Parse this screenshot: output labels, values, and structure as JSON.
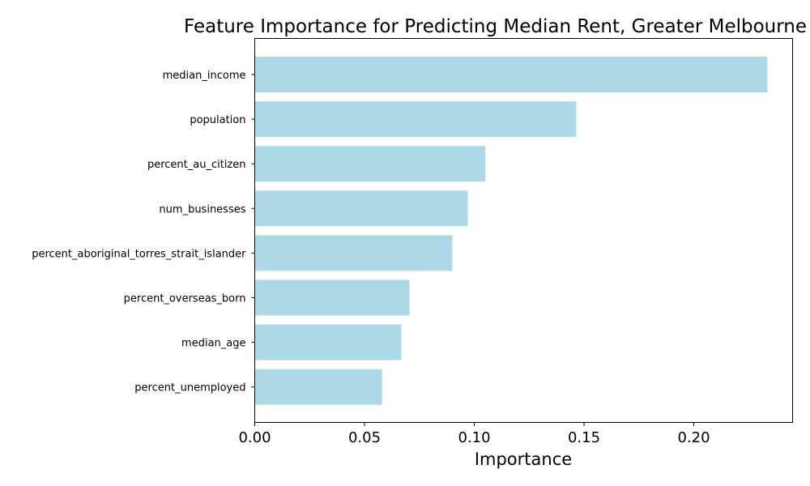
{
  "chart_data": {
    "type": "bar",
    "orientation": "horizontal",
    "title": "Feature Importance for Predicting Median Rent, Greater Melbourne",
    "xlabel": "Importance",
    "ylabel": "",
    "categories": [
      "median_income",
      "population",
      "percent_au_citizen",
      "num_businesses",
      "percent_aboriginal_torres_strait_islander",
      "percent_overseas_born",
      "median_age",
      "percent_unemployed"
    ],
    "values": [
      0.2335,
      0.1465,
      0.105,
      0.097,
      0.09,
      0.0705,
      0.0668,
      0.058
    ],
    "xlim": [
      0,
      0.245
    ],
    "xticks": [
      0.0,
      0.05,
      0.1,
      0.15,
      0.2
    ],
    "xtick_labels": [
      "0.00",
      "0.05",
      "0.10",
      "0.15",
      "0.20"
    ],
    "bar_color": "#add8e6",
    "grid": false,
    "legend": "none"
  }
}
